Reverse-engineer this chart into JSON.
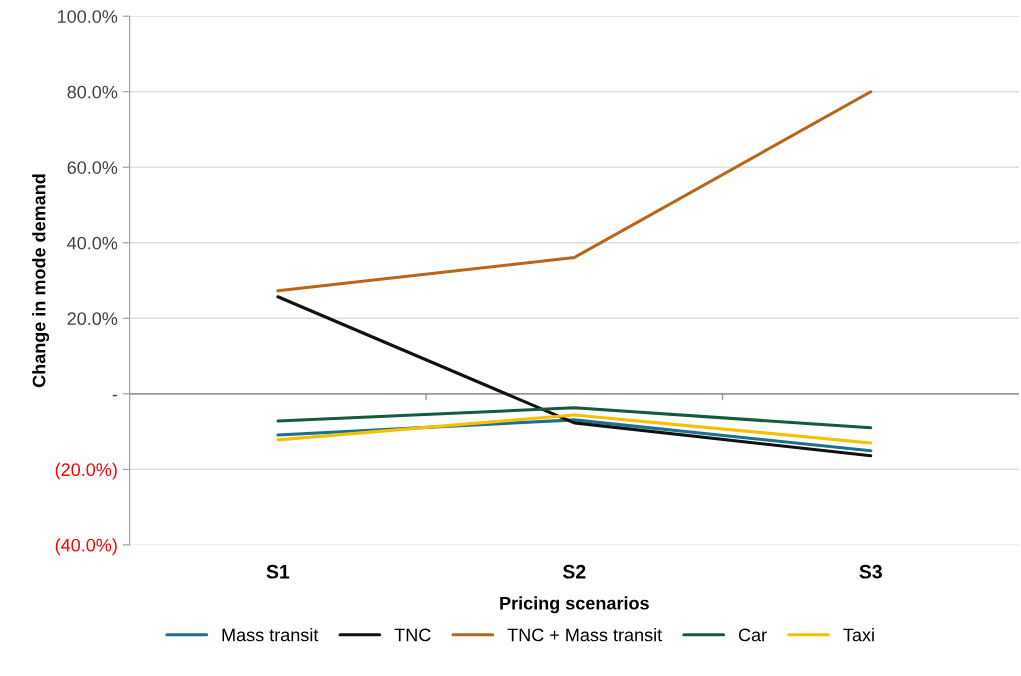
{
  "chart_data": {
    "type": "line",
    "xlabel": "Pricing scenarios",
    "ylabel": "Change in mode demand",
    "categories": [
      "S1",
      "S2",
      "S3"
    ],
    "series": [
      {
        "name": "Mass transit",
        "color": "#1a7090",
        "values": [
          -10.9,
          -6.9,
          -15.1
        ]
      },
      {
        "name": "TNC",
        "color": "#111111",
        "values": [
          25.7,
          -7.7,
          -16.4
        ]
      },
      {
        "name": "TNC + Mass transit",
        "color": "#b8651a",
        "values": [
          27.3,
          36.1,
          80.0
        ]
      },
      {
        "name": "Car",
        "color": "#125c3c",
        "values": [
          -7.2,
          -3.7,
          -9.0
        ]
      },
      {
        "name": "Taxi",
        "color": "#f5c000",
        "values": [
          -12.2,
          -5.6,
          -13.0
        ]
      }
    ],
    "ylim": [
      -40,
      100
    ],
    "yticks": [
      {
        "value": -40,
        "label": "(40.0%)"
      },
      {
        "value": -20,
        "label": "(20.0%)"
      },
      {
        "value": 0,
        "label": "-"
      },
      {
        "value": 20,
        "label": "20.0%"
      },
      {
        "value": 40,
        "label": "40.0%"
      },
      {
        "value": 60,
        "label": "60.0%"
      },
      {
        "value": 80,
        "label": "80.0%"
      },
      {
        "value": 100,
        "label": "100.0%"
      }
    ],
    "grid": "y",
    "legend": "bottom",
    "marker": "none",
    "line_style": "solid"
  }
}
